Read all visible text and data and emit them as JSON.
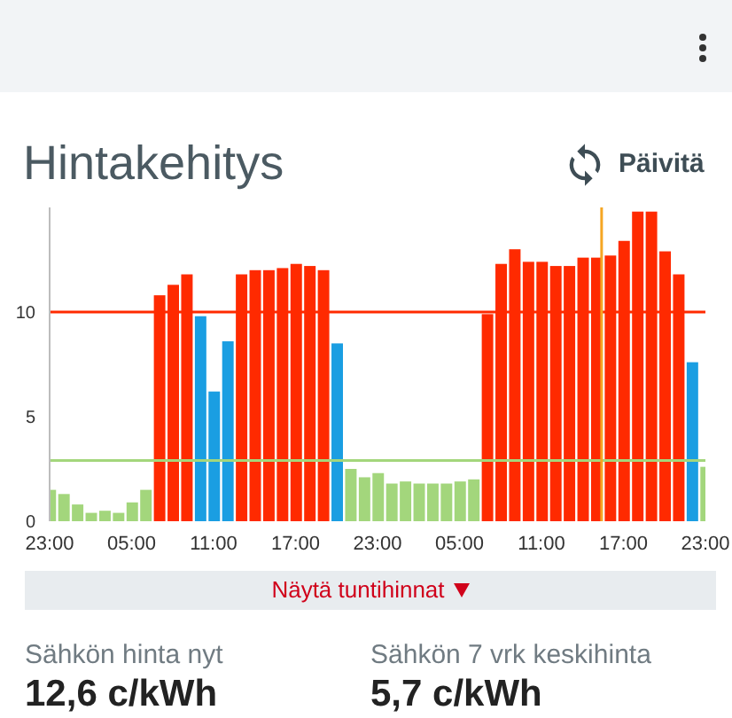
{
  "chart_data": {
    "type": "bar",
    "title": "Hintakehitys",
    "annotations": [
      "Päivitä",
      "Näytä tuntihinnat",
      "Sähkön hinta nyt",
      "12,6 c/kWh",
      "Sähkön 7 vrk keskihinta",
      "5,7 c/kWh"
    ],
    "categories": [
      "23:00",
      null,
      null,
      null,
      null,
      null,
      "05:00",
      null,
      null,
      null,
      null,
      null,
      "11:00",
      null,
      null,
      null,
      null,
      null,
      "17:00",
      null,
      null,
      null,
      null,
      null,
      "23:00",
      null,
      null,
      null,
      null,
      null,
      "05:00",
      null,
      null,
      null,
      null,
      null,
      "11:00",
      null,
      null,
      null,
      null,
      null,
      "17:00",
      null,
      null,
      null,
      null,
      null,
      "23:00"
    ],
    "values": [
      1.5,
      1.3,
      0.8,
      0.4,
      0.5,
      0.4,
      0.9,
      1.5,
      10.8,
      11.3,
      11.8,
      9.8,
      6.2,
      8.6,
      11.8,
      12.0,
      12.0,
      12.1,
      12.3,
      12.2,
      12.0,
      8.5,
      2.5,
      2.1,
      2.3,
      1.8,
      1.9,
      1.8,
      1.8,
      1.8,
      1.9,
      2.0,
      9.9,
      12.3,
      13.0,
      12.4,
      12.4,
      12.2,
      12.2,
      12.6,
      12.6,
      12.7,
      13.4,
      14.8,
      14.8,
      12.9,
      11.8,
      7.6,
      2.6
    ],
    "colors": [
      "#a3d67c",
      "#a3d67c",
      "#a3d67c",
      "#a3d67c",
      "#a3d67c",
      "#a3d67c",
      "#a3d67c",
      "#a3d67c",
      "#ff2a00",
      "#ff2a00",
      "#ff2a00",
      "#1a9ee2",
      "#1a9ee2",
      "#1a9ee2",
      "#ff2a00",
      "#ff2a00",
      "#ff2a00",
      "#ff2a00",
      "#ff2a00",
      "#ff2a00",
      "#ff2a00",
      "#1a9ee2",
      "#a3d67c",
      "#a3d67c",
      "#a3d67c",
      "#a3d67c",
      "#a3d67c",
      "#a3d67c",
      "#a3d67c",
      "#a3d67c",
      "#a3d67c",
      "#a3d67c",
      "#ff2a00",
      "#ff2a00",
      "#ff2a00",
      "#ff2a00",
      "#ff2a00",
      "#ff2a00",
      "#ff2a00",
      "#ff2a00",
      "#ff2a00",
      "#ff2a00",
      "#ff2a00",
      "#ff2a00",
      "#ff2a00",
      "#ff2a00",
      "#ff2a00",
      "#1a9ee2",
      "#a3d67c"
    ],
    "ylim": [
      0,
      15
    ],
    "yticks": [
      0,
      5,
      10
    ],
    "ref_lines": [
      {
        "axis": "y",
        "value": 10,
        "color": "#ff2a00"
      },
      {
        "axis": "y",
        "value": 2.9,
        "color": "#a3d67c"
      }
    ]
  }
}
